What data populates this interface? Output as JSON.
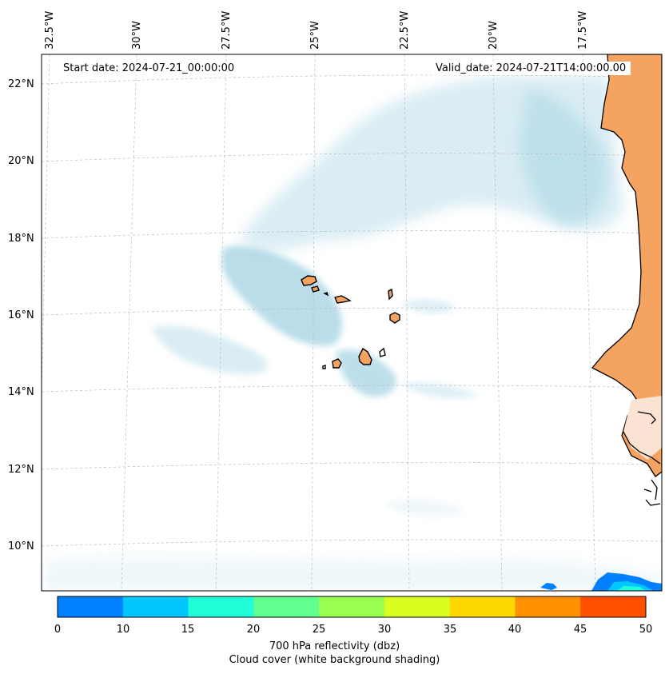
{
  "map": {
    "start_date_text": "Start date: 2024-07-21_00:00:00",
    "valid_date_text": "Valid_date: 2024-07-21T14:00:00.00",
    "lon_labels": [
      "32.5°W",
      "30°W",
      "27.5°W",
      "25°W",
      "22.5°W",
      "20°W",
      "17.5°W"
    ],
    "lat_labels": [
      "22°N",
      "20°N",
      "18°N",
      "16°N",
      "14°N",
      "12°N",
      "10°N"
    ],
    "colors": {
      "land": "#f4a460",
      "cloud": "#add8e6",
      "coastline": "#000000",
      "grid": "#bbbbbb"
    }
  },
  "colorbar": {
    "ticks": [
      "0",
      "10",
      "15",
      "20",
      "25",
      "30",
      "35",
      "40",
      "45",
      "50"
    ],
    "colors": [
      "#0080ff",
      "#00c8ff",
      "#20ffd8",
      "#60ff90",
      "#98ff50",
      "#d8ff20",
      "#ffd800",
      "#ff9000",
      "#ff5000"
    ],
    "label_line1": "700 hPa reflectivity (dbz)",
    "label_line2": "Cloud cover (white background shading)"
  }
}
